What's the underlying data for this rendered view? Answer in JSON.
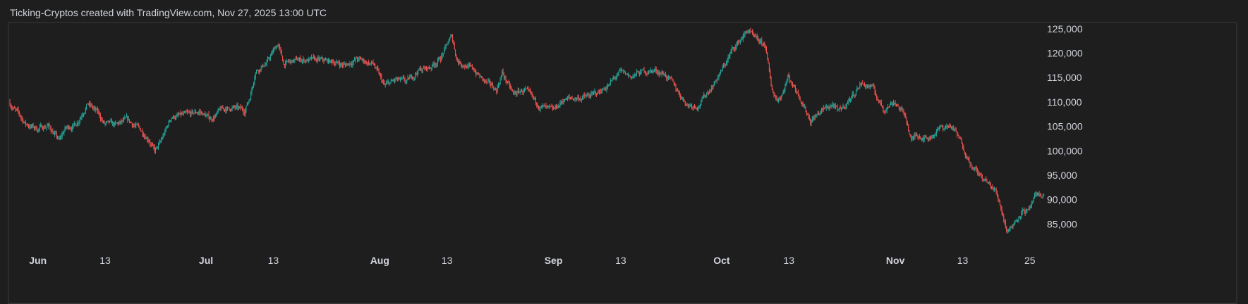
{
  "header": {
    "text": "Ticking-Cryptos created with TradingView.com, Nov 27, 2025 13:00 UTC"
  },
  "colors": {
    "background": "#1e1e1e",
    "panel_border": "#3a3a3a",
    "up": "#26a69a",
    "down": "#ef5350",
    "text": "#d1d4dc"
  },
  "chart_data": {
    "type": "candlestick",
    "x_range": [
      "2025-05-27",
      "2025-11-27"
    ],
    "ylim": [
      80000,
      127000
    ],
    "y_ticks": [
      {
        "value": 85000,
        "label": "85,000"
      },
      {
        "value": 90000,
        "label": "90,000"
      },
      {
        "value": 95000,
        "label": "95,000"
      },
      {
        "value": 100000,
        "label": "100,000"
      },
      {
        "value": 105000,
        "label": "105,000"
      },
      {
        "value": 110000,
        "label": "110,000"
      },
      {
        "value": 115000,
        "label": "115,000"
      },
      {
        "value": 120000,
        "label": "120,000"
      },
      {
        "value": 125000,
        "label": "125,000"
      }
    ],
    "x_ticks": [
      {
        "date": "2025-06-01",
        "label": "Jun",
        "month": true
      },
      {
        "date": "2025-06-13",
        "label": "13",
        "month": false
      },
      {
        "date": "2025-07-01",
        "label": "Jul",
        "month": true
      },
      {
        "date": "2025-07-13",
        "label": "13",
        "month": false
      },
      {
        "date": "2025-08-01",
        "label": "Aug",
        "month": true
      },
      {
        "date": "2025-08-13",
        "label": "13",
        "month": false
      },
      {
        "date": "2025-09-01",
        "label": "Sep",
        "month": true
      },
      {
        "date": "2025-09-13",
        "label": "13",
        "month": false
      },
      {
        "date": "2025-10-01",
        "label": "Oct",
        "month": true
      },
      {
        "date": "2025-10-13",
        "label": "13",
        "month": false
      },
      {
        "date": "2025-11-01",
        "label": "Nov",
        "month": true
      },
      {
        "date": "2025-11-13",
        "label": "13",
        "month": false
      },
      {
        "date": "2025-11-25",
        "label": "25",
        "month": false
      }
    ],
    "price_path": [
      [
        "2025-05-27",
        110000
      ],
      [
        "2025-05-28",
        108500
      ],
      [
        "2025-05-30",
        105500
      ],
      [
        "2025-06-01",
        104500
      ],
      [
        "2025-06-03",
        105200
      ],
      [
        "2025-06-05",
        102000
      ],
      [
        "2025-06-06",
        104500
      ],
      [
        "2025-06-08",
        105500
      ],
      [
        "2025-06-10",
        109800
      ],
      [
        "2025-06-12",
        107500
      ],
      [
        "2025-06-13",
        105500
      ],
      [
        "2025-06-15",
        105200
      ],
      [
        "2025-06-17",
        106200
      ],
      [
        "2025-06-19",
        104800
      ],
      [
        "2025-06-21",
        102500
      ],
      [
        "2025-06-22",
        99800
      ],
      [
        "2025-06-23",
        101500
      ],
      [
        "2025-06-25",
        107000
      ],
      [
        "2025-06-28",
        107300
      ],
      [
        "2025-06-30",
        108000
      ],
      [
        "2025-07-02",
        106500
      ],
      [
        "2025-07-04",
        108500
      ],
      [
        "2025-07-06",
        108800
      ],
      [
        "2025-07-08",
        108200
      ],
      [
        "2025-07-09",
        111000
      ],
      [
        "2025-07-10",
        116500
      ],
      [
        "2025-07-12",
        118000
      ],
      [
        "2025-07-14",
        122000
      ],
      [
        "2025-07-15",
        117800
      ],
      [
        "2025-07-18",
        118700
      ],
      [
        "2025-07-21",
        118500
      ],
      [
        "2025-07-24",
        118200
      ],
      [
        "2025-07-26",
        117500
      ],
      [
        "2025-07-28",
        118800
      ],
      [
        "2025-07-31",
        117800
      ],
      [
        "2025-08-02",
        113200
      ],
      [
        "2025-08-04",
        114500
      ],
      [
        "2025-08-06",
        114000
      ],
      [
        "2025-08-08",
        116500
      ],
      [
        "2025-08-10",
        117000
      ],
      [
        "2025-08-12",
        119000
      ],
      [
        "2025-08-14",
        123500
      ],
      [
        "2025-08-15",
        118500
      ],
      [
        "2025-08-18",
        116500
      ],
      [
        "2025-08-20",
        114000
      ],
      [
        "2025-08-22",
        112500
      ],
      [
        "2025-08-23",
        116000
      ],
      [
        "2025-08-25",
        111500
      ],
      [
        "2025-08-27",
        112500
      ],
      [
        "2025-08-29",
        109800
      ],
      [
        "2025-08-31",
        108500
      ],
      [
        "2025-09-01",
        108000
      ],
      [
        "2025-09-03",
        110500
      ],
      [
        "2025-09-05",
        110800
      ],
      [
        "2025-09-07",
        111000
      ],
      [
        "2025-09-09",
        111800
      ],
      [
        "2025-09-11",
        113500
      ],
      [
        "2025-09-13",
        116000
      ],
      [
        "2025-09-15",
        115200
      ],
      [
        "2025-09-17",
        116200
      ],
      [
        "2025-09-19",
        116500
      ],
      [
        "2025-09-21",
        115800
      ],
      [
        "2025-09-23",
        112800
      ],
      [
        "2025-09-25",
        109500
      ],
      [
        "2025-09-27",
        109300
      ],
      [
        "2025-09-29",
        112500
      ],
      [
        "2025-10-01",
        116000
      ],
      [
        "2025-10-03",
        120500
      ],
      [
        "2025-10-05",
        123500
      ],
      [
        "2025-10-06",
        124800
      ],
      [
        "2025-10-07",
        122800
      ],
      [
        "2025-10-09",
        121500
      ],
      [
        "2025-10-10",
        113000
      ],
      [
        "2025-10-11",
        110500
      ],
      [
        "2025-10-12",
        111800
      ],
      [
        "2025-10-13",
        115200
      ],
      [
        "2025-10-15",
        111500
      ],
      [
        "2025-10-17",
        106200
      ],
      [
        "2025-10-19",
        108200
      ],
      [
        "2025-10-21",
        109500
      ],
      [
        "2025-10-22",
        107800
      ],
      [
        "2025-10-24",
        110500
      ],
      [
        "2025-10-26",
        113800
      ],
      [
        "2025-10-28",
        113000
      ],
      [
        "2025-10-30",
        108500
      ],
      [
        "2025-11-01",
        110200
      ],
      [
        "2025-11-03",
        107000
      ],
      [
        "2025-11-04",
        102000
      ],
      [
        "2025-11-05",
        103500
      ],
      [
        "2025-11-07",
        102500
      ],
      [
        "2025-11-09",
        104500
      ],
      [
        "2025-11-11",
        105200
      ],
      [
        "2025-11-12",
        103500
      ],
      [
        "2025-11-13",
        101500
      ],
      [
        "2025-11-15",
        96500
      ],
      [
        "2025-11-17",
        94000
      ],
      [
        "2025-11-19",
        91800
      ],
      [
        "2025-11-20",
        88500
      ],
      [
        "2025-11-21",
        84000
      ],
      [
        "2025-11-22",
        84500
      ],
      [
        "2025-11-23",
        86500
      ],
      [
        "2025-11-24",
        88000
      ],
      [
        "2025-11-25",
        87500
      ],
      [
        "2025-11-26",
        90200
      ],
      [
        "2025-11-27",
        91000
      ]
    ]
  }
}
